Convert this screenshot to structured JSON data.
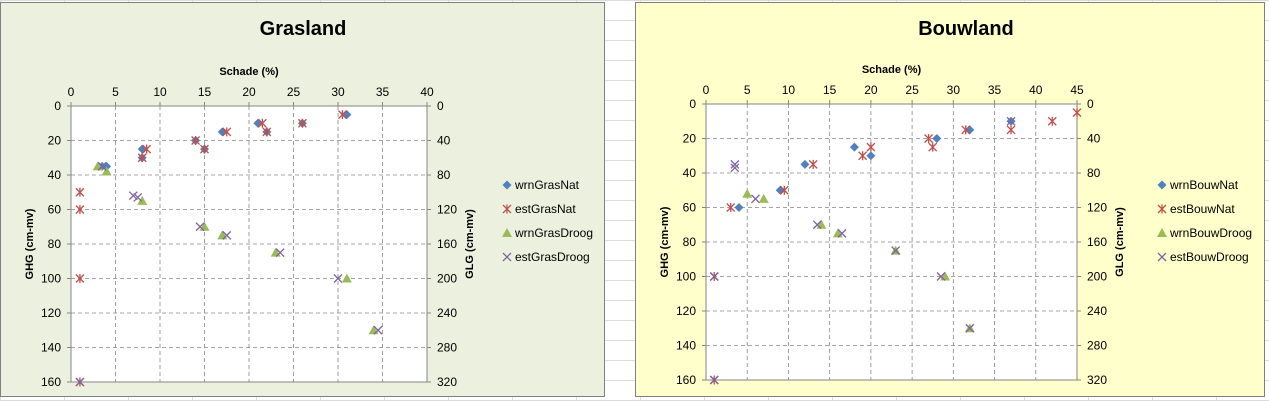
{
  "chart_data": [
    {
      "type": "scatter",
      "title": "Grasland",
      "xlabel": "Schade (%)",
      "ylabel": "GHG (cm-mv)",
      "y2label": "GLG (cm-mv)",
      "xlim": [
        0,
        40
      ],
      "ylim": [
        0,
        160
      ],
      "y2lim": [
        0,
        320
      ],
      "x_ticks": [
        0,
        5,
        10,
        15,
        20,
        25,
        30,
        35,
        40
      ],
      "y_ticks": [
        0,
        20,
        40,
        60,
        80,
        100,
        120,
        140,
        160
      ],
      "y2_ticks": [
        0,
        40,
        80,
        120,
        160,
        200,
        240,
        280,
        320
      ],
      "y_reversed": true,
      "x_axis_position": "top",
      "grid": true,
      "legend": "right",
      "background": "#ebf1de",
      "series": [
        {
          "name": "wrnGrasNat",
          "marker": "diamond",
          "color": "#4f81bd",
          "points": [
            [
              31,
              5
            ],
            [
              21,
              10
            ],
            [
              26,
              10
            ],
            [
              17,
              15
            ],
            [
              22,
              15
            ],
            [
              8,
              25
            ],
            [
              15,
              25
            ],
            [
              14,
              20
            ],
            [
              8,
              30
            ],
            [
              3.5,
              35
            ],
            [
              4,
              35
            ]
          ]
        },
        {
          "name": "estGrasNat",
          "marker": "star",
          "color": "#c0504d",
          "points": [
            [
              30.5,
              5
            ],
            [
              21.5,
              10
            ],
            [
              26,
              10
            ],
            [
              17.5,
              15
            ],
            [
              22,
              15
            ],
            [
              8.5,
              25
            ],
            [
              15,
              25
            ],
            [
              14,
              20
            ],
            [
              8,
              30
            ],
            [
              1,
              50
            ],
            [
              1,
              60
            ],
            [
              1,
              100
            ],
            [
              1,
              160
            ]
          ]
        },
        {
          "name": "wrnGrasDroog",
          "marker": "triangle",
          "color": "#9bbb59",
          "points": [
            [
              3,
              35
            ],
            [
              4,
              38
            ],
            [
              8,
              55
            ],
            [
              15,
              70
            ],
            [
              17,
              75
            ],
            [
              23,
              85
            ],
            [
              31,
              100
            ],
            [
              34,
              130
            ]
          ]
        },
        {
          "name": "estGrasDroog",
          "marker": "x",
          "color": "#8064a2",
          "points": [
            [
              3.5,
              35
            ],
            [
              7,
              52
            ],
            [
              7.5,
              53
            ],
            [
              14.5,
              70
            ],
            [
              17.5,
              75
            ],
            [
              23.5,
              85
            ],
            [
              30,
              100
            ],
            [
              34.5,
              130
            ],
            [
              1,
              160
            ]
          ]
        }
      ]
    },
    {
      "type": "scatter",
      "title": "Bouwland",
      "xlabel": "Schade (%)",
      "ylabel": "GHG (cm-mv)",
      "y2label": "GLG (cm-mv)",
      "xlim": [
        0,
        45
      ],
      "ylim": [
        0,
        160
      ],
      "y2lim": [
        0,
        320
      ],
      "x_ticks": [
        0,
        5,
        10,
        15,
        20,
        25,
        30,
        35,
        40,
        45
      ],
      "y_ticks": [
        0,
        20,
        40,
        60,
        80,
        100,
        120,
        140,
        160
      ],
      "y2_ticks": [
        0,
        40,
        80,
        120,
        160,
        200,
        240,
        280,
        320
      ],
      "y_reversed": true,
      "x_axis_position": "top",
      "grid": true,
      "legend": "right",
      "background": "#ffffcc",
      "series": [
        {
          "name": "wrnBouwNat",
          "marker": "diamond",
          "color": "#4f81bd",
          "points": [
            [
              37,
              10
            ],
            [
              32,
              15
            ],
            [
              28,
              20
            ],
            [
              18,
              25
            ],
            [
              20,
              30
            ],
            [
              12,
              35
            ],
            [
              9,
              50
            ],
            [
              4,
              60
            ]
          ]
        },
        {
          "name": "estBouwNat",
          "marker": "star",
          "color": "#c0504d",
          "points": [
            [
              45,
              5
            ],
            [
              42,
              10
            ],
            [
              37,
              15
            ],
            [
              31.5,
              15
            ],
            [
              27,
              20
            ],
            [
              27.5,
              25
            ],
            [
              20,
              25
            ],
            [
              19,
              30
            ],
            [
              13,
              35
            ],
            [
              9.5,
              50
            ],
            [
              3,
              60
            ],
            [
              1,
              100
            ],
            [
              1,
              160
            ]
          ]
        },
        {
          "name": "wrnBouwDroog",
          "marker": "triangle",
          "color": "#9bbb59",
          "points": [
            [
              5,
              52
            ],
            [
              7,
              55
            ],
            [
              14,
              70
            ],
            [
              16,
              75
            ],
            [
              23,
              85
            ],
            [
              29,
              100
            ],
            [
              32,
              130
            ]
          ]
        },
        {
          "name": "estBouwDroog",
          "marker": "x",
          "color": "#8064a2",
          "points": [
            [
              37,
              10
            ],
            [
              3.5,
              35
            ],
            [
              3.5,
              37
            ],
            [
              6,
              55
            ],
            [
              13.5,
              70
            ],
            [
              16.5,
              75
            ],
            [
              23,
              85
            ],
            [
              28.5,
              100
            ],
            [
              32,
              130
            ],
            [
              1,
              100
            ],
            [
              1,
              160
            ]
          ]
        }
      ]
    }
  ]
}
